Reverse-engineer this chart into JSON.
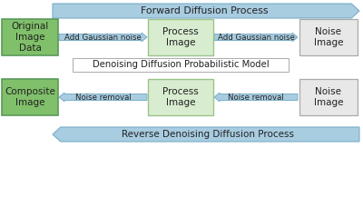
{
  "bg_color": "#ffffff",
  "green_box_color": "#80c06a",
  "green_box_edge": "#5a9a5a",
  "process_box_color": "#d8ecd0",
  "process_box_edge": "#9bc48a",
  "noise_box_color": "#e8e8e8",
  "noise_box_edge": "#aaaaaa",
  "arrow_fill": "#a8cce0",
  "arrow_edge": "#7aaec8",
  "text_dark": "#222222",
  "text_mid": "#444444",
  "top_arrow_label": "Forward Diffusion Process",
  "bottom_arrow_label": "Reverse Denoising Diffusion Process",
  "middle_label": "Denoising Diffusion Probabilistic Model",
  "row1_box1": "Original\nImage\nData",
  "row1_arr1": "Add Gaussian noise",
  "row1_box2": "Process\nImage",
  "row1_arr2": "Add Gaussian noise",
  "row1_box3": "Noise\nImage",
  "row2_box1": "Composite\nImage",
  "row2_arr1": "Noise removal",
  "row2_box2": "Process\nImage",
  "row2_arr2": "Noise removal",
  "row2_box3": "Noise\nImage"
}
